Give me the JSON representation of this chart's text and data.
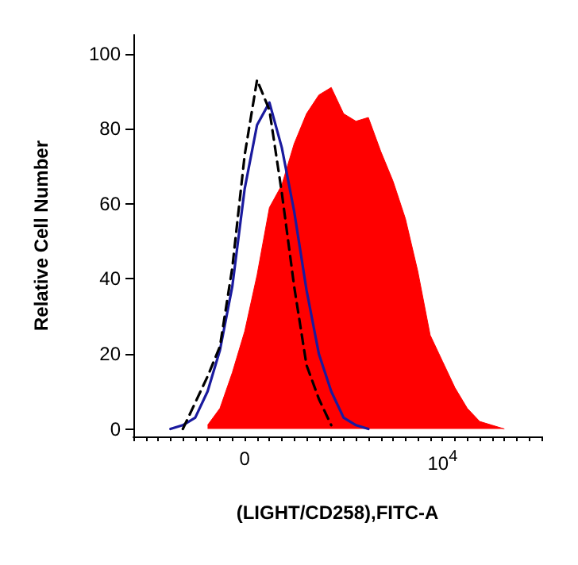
{
  "chart_data": {
    "type": "line",
    "xlabel": "(LIGHT/CD258),FITC-A",
    "ylabel": "Relative Cell Number",
    "categories": [
      null,
      null,
      null,
      null,
      null,
      null,
      null,
      null,
      null,
      "0",
      null,
      null,
      null,
      null,
      null,
      null,
      null,
      null,
      null,
      null,
      null,
      null,
      null,
      null,
      null,
      "10$^{4}$",
      null,
      null,
      null,
      null,
      null,
      null,
      null,
      null
    ],
    "ylim": [
      -2,
      105
    ],
    "yticks": [
      0,
      20,
      40,
      60,
      80,
      100
    ],
    "grid": false,
    "marker": "none",
    "series": [
      {
        "type": "area",
        "color": "#ff0000",
        "values": [
          null,
          null,
          null,
          null,
          null,
          null,
          1,
          5.5,
          15,
          26,
          41,
          59,
          65,
          76,
          84,
          89,
          91,
          84,
          82,
          83,
          74,
          66,
          56,
          42,
          25,
          18,
          11,
          5.5,
          2,
          1,
          0,
          null,
          null,
          null
        ]
      },
      {
        "type": "line",
        "color": "#1a1a9e",
        "line_style": "solid",
        "values": [
          null,
          null,
          null,
          0,
          1,
          3,
          10,
          21,
          38,
          64,
          81,
          87,
          75,
          58,
          37,
          20,
          10,
          3,
          1,
          0,
          null,
          null,
          null,
          null,
          null,
          null,
          null,
          null,
          null,
          null,
          null,
          null,
          null,
          null
        ]
      },
      {
        "type": "line",
        "color": "#000000",
        "line_style": "dashed",
        "values": [
          null,
          null,
          null,
          null,
          0,
          7,
          14,
          22,
          43,
          73,
          93,
          85,
          63,
          38,
          17,
          8,
          1,
          null,
          null,
          null,
          null,
          null,
          null,
          null,
          null,
          null,
          null,
          null,
          null,
          null,
          null,
          null,
          null,
          null
        ]
      }
    ]
  }
}
